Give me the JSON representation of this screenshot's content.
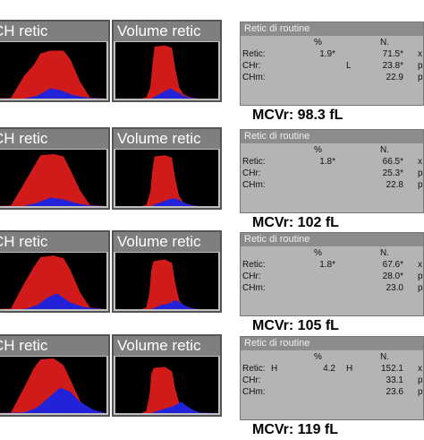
{
  "panels": {
    "ch_title": "CH retic",
    "vol_title": "Volume retic"
  },
  "info": {
    "title": "Retic di routine",
    "pct_header": "%",
    "n_header": "N."
  },
  "rows": [
    {
      "mcvr": "MCVr: 98.3 fL",
      "lines": [
        {
          "label": "Retic:",
          "flag1": "",
          "pct": "1.9*",
          "flag2": "",
          "n": "71.5*",
          "unit": "x"
        },
        {
          "label": "CHr:",
          "flag1": "",
          "pct": "",
          "flag2": "L",
          "n": "23.8*",
          "unit": "p"
        },
        {
          "label": "CHm:",
          "flag1": "",
          "pct": "",
          "flag2": "",
          "n": "22.9",
          "unit": "p"
        }
      ],
      "ch": {
        "red": [
          [
            0,
            100
          ],
          [
            6,
            99
          ],
          [
            10,
            60
          ],
          [
            13,
            40
          ],
          [
            15,
            20
          ],
          [
            18,
            15
          ],
          [
            22,
            15
          ],
          [
            24,
            30
          ],
          [
            27,
            70
          ],
          [
            30,
            98
          ],
          [
            35,
            100
          ]
        ],
        "blue": [
          [
            0,
            100
          ],
          [
            10,
            100
          ],
          [
            14,
            95
          ],
          [
            18,
            82
          ],
          [
            21,
            85
          ],
          [
            25,
            94
          ],
          [
            30,
            99
          ],
          [
            35,
            100
          ]
        ]
      },
      "vol": {
        "red": [
          [
            0,
            100
          ],
          [
            25,
            100
          ],
          [
            30,
            98
          ],
          [
            34,
            80
          ],
          [
            36,
            40
          ],
          [
            38,
            8
          ],
          [
            48,
            6
          ],
          [
            55,
            10
          ],
          [
            58,
            45
          ],
          [
            62,
            80
          ],
          [
            66,
            92
          ],
          [
            72,
            97
          ],
          [
            80,
            100
          ],
          [
            100,
            100
          ]
        ],
        "blue": [
          [
            0,
            100
          ],
          [
            35,
            100
          ],
          [
            40,
            95
          ],
          [
            45,
            90
          ],
          [
            50,
            85
          ],
          [
            54,
            82
          ],
          [
            58,
            87
          ],
          [
            62,
            90
          ],
          [
            66,
            95
          ],
          [
            72,
            98
          ],
          [
            80,
            100
          ],
          [
            100,
            100
          ]
        ]
      }
    },
    {
      "mcvr": "MCVr: 102 fL",
      "lines": [
        {
          "label": "Retic:",
          "flag1": "",
          "pct": "1.8*",
          "flag2": "",
          "n": "66.5*",
          "unit": "x"
        },
        {
          "label": "CHr:",
          "flag1": "",
          "pct": "",
          "flag2": "",
          "n": "25.3*",
          "unit": "p"
        },
        {
          "label": "CHm:",
          "flag1": "",
          "pct": "",
          "flag2": "",
          "n": "22.8",
          "unit": "p"
        }
      ],
      "ch": {
        "red": [
          [
            0,
            100
          ],
          [
            6,
            99
          ],
          [
            10,
            60
          ],
          [
            13,
            30
          ],
          [
            15,
            10
          ],
          [
            19,
            8
          ],
          [
            22,
            12
          ],
          [
            24,
            35
          ],
          [
            27,
            72
          ],
          [
            30,
            98
          ],
          [
            35,
            100
          ]
        ],
        "blue": [
          [
            0,
            100
          ],
          [
            10,
            100
          ],
          [
            14,
            94
          ],
          [
            18,
            85
          ],
          [
            22,
            88
          ],
          [
            26,
            95
          ],
          [
            30,
            99
          ],
          [
            35,
            100
          ]
        ]
      },
      "vol": {
        "red": [
          [
            0,
            100
          ],
          [
            25,
            100
          ],
          [
            30,
            98
          ],
          [
            34,
            75
          ],
          [
            36,
            35
          ],
          [
            38,
            12
          ],
          [
            48,
            10
          ],
          [
            55,
            14
          ],
          [
            58,
            50
          ],
          [
            62,
            82
          ],
          [
            66,
            93
          ],
          [
            72,
            97
          ],
          [
            80,
            100
          ],
          [
            100,
            100
          ]
        ],
        "blue": [
          [
            0,
            100
          ],
          [
            35,
            100
          ],
          [
            40,
            96
          ],
          [
            46,
            92
          ],
          [
            52,
            88
          ],
          [
            57,
            86
          ],
          [
            62,
            89
          ],
          [
            68,
            95
          ],
          [
            74,
            98
          ],
          [
            80,
            100
          ],
          [
            100,
            100
          ]
        ]
      }
    },
    {
      "mcvr": "MCVr: 105 fL",
      "lines": [
        {
          "label": "Retic:",
          "flag1": "",
          "pct": "1.8*",
          "flag2": "",
          "n": "67.6*",
          "unit": "x"
        },
        {
          "label": "CHr:",
          "flag1": "",
          "pct": "",
          "flag2": "",
          "n": "28.0*",
          "unit": "p"
        },
        {
          "label": "CHm:",
          "flag1": "",
          "pct": "",
          "flag2": "",
          "n": "23.0",
          "unit": "p"
        }
      ],
      "ch": {
        "red": [
          [
            0,
            100
          ],
          [
            6,
            99
          ],
          [
            10,
            55
          ],
          [
            13,
            25
          ],
          [
            15,
            8
          ],
          [
            19,
            5
          ],
          [
            22,
            10
          ],
          [
            24,
            30
          ],
          [
            27,
            70
          ],
          [
            30,
            97
          ],
          [
            35,
            100
          ]
        ],
        "blue": [
          [
            0,
            100
          ],
          [
            10,
            100
          ],
          [
            14,
            93
          ],
          [
            17,
            80
          ],
          [
            20,
            72
          ],
          [
            24,
            88
          ],
          [
            28,
            96
          ],
          [
            32,
            99
          ],
          [
            35,
            100
          ]
        ]
      },
      "vol": {
        "red": [
          [
            0,
            100
          ],
          [
            25,
            100
          ],
          [
            30,
            97
          ],
          [
            33,
            72
          ],
          [
            35,
            30
          ],
          [
            37,
            15
          ],
          [
            48,
            12
          ],
          [
            55,
            18
          ],
          [
            58,
            52
          ],
          [
            62,
            84
          ],
          [
            66,
            93
          ],
          [
            72,
            97
          ],
          [
            80,
            100
          ],
          [
            100,
            100
          ]
        ],
        "blue": [
          [
            0,
            100
          ],
          [
            35,
            100
          ],
          [
            40,
            96
          ],
          [
            46,
            92
          ],
          [
            52,
            90
          ],
          [
            58,
            84
          ],
          [
            63,
            88
          ],
          [
            68,
            94
          ],
          [
            74,
            98
          ],
          [
            80,
            100
          ],
          [
            100,
            100
          ]
        ]
      }
    },
    {
      "mcvr": "MCVr: 119 fL",
      "lines": [
        {
          "label": "Retic:",
          "flag1": "H",
          "pct": "4.2",
          "flag2": "H",
          "n": "152.1",
          "unit": "x"
        },
        {
          "label": "CHr:",
          "flag1": "",
          "pct": "",
          "flag2": "",
          "n": "33.1",
          "unit": "p"
        },
        {
          "label": "CHm:",
          "flag1": "",
          "pct": "",
          "flag2": "",
          "n": "23.6",
          "unit": "p"
        }
      ],
      "ch": {
        "red": [
          [
            0,
            100
          ],
          [
            6,
            99
          ],
          [
            10,
            55
          ],
          [
            13,
            20
          ],
          [
            15,
            5
          ],
          [
            19,
            3
          ],
          [
            22,
            15
          ],
          [
            24,
            40
          ],
          [
            27,
            78
          ],
          [
            30,
            97
          ],
          [
            35,
            100
          ]
        ],
        "blue": [
          [
            0,
            100
          ],
          [
            10,
            99
          ],
          [
            14,
            90
          ],
          [
            18,
            70
          ],
          [
            21,
            55
          ],
          [
            24,
            62
          ],
          [
            27,
            80
          ],
          [
            31,
            94
          ],
          [
            35,
            100
          ]
        ]
      },
      "vol": {
        "red": [
          [
            0,
            100
          ],
          [
            25,
            100
          ],
          [
            30,
            96
          ],
          [
            33,
            70
          ],
          [
            35,
            30
          ],
          [
            37,
            20
          ],
          [
            48,
            18
          ],
          [
            55,
            26
          ],
          [
            58,
            55
          ],
          [
            62,
            82
          ],
          [
            66,
            90
          ],
          [
            72,
            96
          ],
          [
            80,
            100
          ],
          [
            100,
            100
          ]
        ],
        "blue": [
          [
            0,
            100
          ],
          [
            35,
            100
          ],
          [
            40,
            97
          ],
          [
            46,
            93
          ],
          [
            52,
            90
          ],
          [
            58,
            86
          ],
          [
            64,
            80
          ],
          [
            70,
            88
          ],
          [
            76,
            95
          ],
          [
            82,
            99
          ],
          [
            100,
            100
          ]
        ]
      }
    }
  ]
}
